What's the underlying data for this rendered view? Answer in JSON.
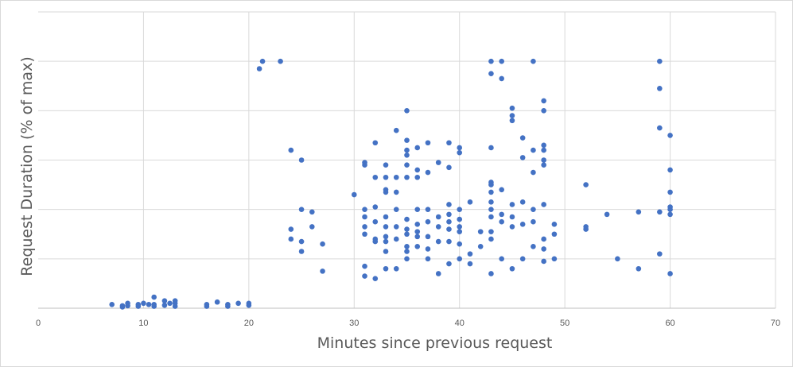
{
  "chart_data": {
    "type": "scatter",
    "xlabel": "Minutes since previous request",
    "ylabel": "Request Duration (% of max)",
    "xlim": [
      0,
      70
    ],
    "ylim": [
      0,
      100
    ],
    "x_ticks": [
      "0",
      "10",
      "20",
      "30",
      "40",
      "50",
      "60",
      "70"
    ],
    "y_tick_labels_visible": false,
    "grid": true,
    "legend": "none",
    "marker_color": "#4472c4",
    "points": [
      [
        7,
        1.5
      ],
      [
        8,
        1
      ],
      [
        8,
        0.5
      ],
      [
        8.5,
        2
      ],
      [
        8.5,
        1
      ],
      [
        9.5,
        1.5
      ],
      [
        9.5,
        0.8
      ],
      [
        10,
        2
      ],
      [
        10.5,
        1.5
      ],
      [
        11,
        4.5
      ],
      [
        11,
        1.5
      ],
      [
        11,
        0.8
      ],
      [
        12,
        3
      ],
      [
        12,
        1.2
      ],
      [
        12.5,
        2
      ],
      [
        13,
        3
      ],
      [
        13,
        2
      ],
      [
        13,
        0.8
      ],
      [
        16,
        1.5
      ],
      [
        16,
        0.8
      ],
      [
        17,
        2.5
      ],
      [
        18,
        1.5
      ],
      [
        18,
        0.8
      ],
      [
        19,
        2
      ],
      [
        20,
        2
      ],
      [
        20,
        1.2
      ],
      [
        21,
        97
      ],
      [
        21.3,
        100
      ],
      [
        23,
        100
      ],
      [
        24,
        64
      ],
      [
        24,
        32
      ],
      [
        24,
        28
      ],
      [
        25,
        60
      ],
      [
        25,
        40
      ],
      [
        25,
        27
      ],
      [
        25,
        23
      ],
      [
        26,
        39
      ],
      [
        26,
        33
      ],
      [
        27,
        26
      ],
      [
        27,
        15
      ],
      [
        30,
        46
      ],
      [
        31,
        59
      ],
      [
        31,
        58
      ],
      [
        31,
        40
      ],
      [
        31,
        37
      ],
      [
        31,
        33
      ],
      [
        31,
        30
      ],
      [
        31,
        17
      ],
      [
        31,
        13
      ],
      [
        32,
        67
      ],
      [
        32,
        53
      ],
      [
        32,
        41
      ],
      [
        32,
        35
      ],
      [
        32,
        28
      ],
      [
        32,
        27
      ],
      [
        32,
        12
      ],
      [
        33,
        58
      ],
      [
        33,
        53
      ],
      [
        33,
        48
      ],
      [
        33,
        47
      ],
      [
        33,
        37
      ],
      [
        33,
        33
      ],
      [
        33,
        29
      ],
      [
        33,
        27
      ],
      [
        33,
        23
      ],
      [
        33,
        16
      ],
      [
        34,
        72
      ],
      [
        34,
        53
      ],
      [
        34,
        47
      ],
      [
        34,
        40
      ],
      [
        34,
        33
      ],
      [
        34,
        28
      ],
      [
        34,
        16
      ],
      [
        35,
        80
      ],
      [
        35,
        68
      ],
      [
        35,
        64
      ],
      [
        35,
        62
      ],
      [
        35,
        58
      ],
      [
        35,
        53
      ],
      [
        35,
        36
      ],
      [
        35,
        32
      ],
      [
        35,
        30
      ],
      [
        35,
        25
      ],
      [
        35,
        23
      ],
      [
        35,
        20
      ],
      [
        36,
        65
      ],
      [
        36,
        56
      ],
      [
        36,
        53
      ],
      [
        36,
        40
      ],
      [
        36,
        34
      ],
      [
        36,
        31
      ],
      [
        36,
        29
      ],
      [
        36,
        25
      ],
      [
        37,
        67
      ],
      [
        37,
        55
      ],
      [
        37,
        40
      ],
      [
        37,
        35
      ],
      [
        37,
        29
      ],
      [
        37,
        24
      ],
      [
        37,
        20
      ],
      [
        38,
        59
      ],
      [
        38,
        37
      ],
      [
        38,
        33
      ],
      [
        38,
        27
      ],
      [
        38,
        14
      ],
      [
        39,
        67
      ],
      [
        39,
        57
      ],
      [
        39,
        42
      ],
      [
        39,
        38
      ],
      [
        39,
        35
      ],
      [
        39,
        32
      ],
      [
        39,
        27
      ],
      [
        39,
        18
      ],
      [
        40,
        65
      ],
      [
        40,
        63
      ],
      [
        40,
        40
      ],
      [
        40,
        36
      ],
      [
        40,
        33
      ],
      [
        40,
        31
      ],
      [
        40,
        26
      ],
      [
        40,
        20
      ],
      [
        41,
        43
      ],
      [
        41,
        22
      ],
      [
        41,
        18
      ],
      [
        42,
        31
      ],
      [
        42,
        25
      ],
      [
        43,
        95
      ],
      [
        43,
        100
      ],
      [
        43,
        65
      ],
      [
        43,
        51
      ],
      [
        43,
        50
      ],
      [
        43,
        47
      ],
      [
        43,
        43
      ],
      [
        43,
        40
      ],
      [
        43,
        37
      ],
      [
        43,
        31
      ],
      [
        43,
        28
      ],
      [
        43,
        14
      ],
      [
        44,
        100
      ],
      [
        44,
        93
      ],
      [
        44,
        48
      ],
      [
        44,
        38
      ],
      [
        44,
        35
      ],
      [
        44,
        20
      ],
      [
        45,
        81
      ],
      [
        45,
        78
      ],
      [
        45,
        76
      ],
      [
        45,
        42
      ],
      [
        45,
        37
      ],
      [
        45,
        33
      ],
      [
        45,
        16
      ],
      [
        46,
        69
      ],
      [
        46,
        61
      ],
      [
        46,
        43
      ],
      [
        46,
        34
      ],
      [
        46,
        20
      ],
      [
        47,
        100
      ],
      [
        47,
        64
      ],
      [
        47,
        55
      ],
      [
        47,
        40
      ],
      [
        47,
        35
      ],
      [
        47,
        25
      ],
      [
        48,
        84
      ],
      [
        48,
        80
      ],
      [
        48,
        66
      ],
      [
        48,
        64
      ],
      [
        48,
        60
      ],
      [
        48,
        58
      ],
      [
        48,
        42
      ],
      [
        48,
        28
      ],
      [
        48,
        24
      ],
      [
        48,
        19
      ],
      [
        49,
        34
      ],
      [
        49,
        30
      ],
      [
        49,
        20
      ],
      [
        52,
        50
      ],
      [
        52,
        33
      ],
      [
        52,
        32
      ],
      [
        54,
        38
      ],
      [
        55,
        20
      ],
      [
        57,
        39
      ],
      [
        57,
        16
      ],
      [
        59,
        100
      ],
      [
        59,
        89
      ],
      [
        59,
        73
      ],
      [
        59,
        39
      ],
      [
        59,
        22
      ],
      [
        60,
        70
      ],
      [
        60,
        56
      ],
      [
        60,
        47
      ],
      [
        60,
        41
      ],
      [
        60,
        40
      ],
      [
        60,
        38
      ],
      [
        60,
        14
      ]
    ]
  }
}
